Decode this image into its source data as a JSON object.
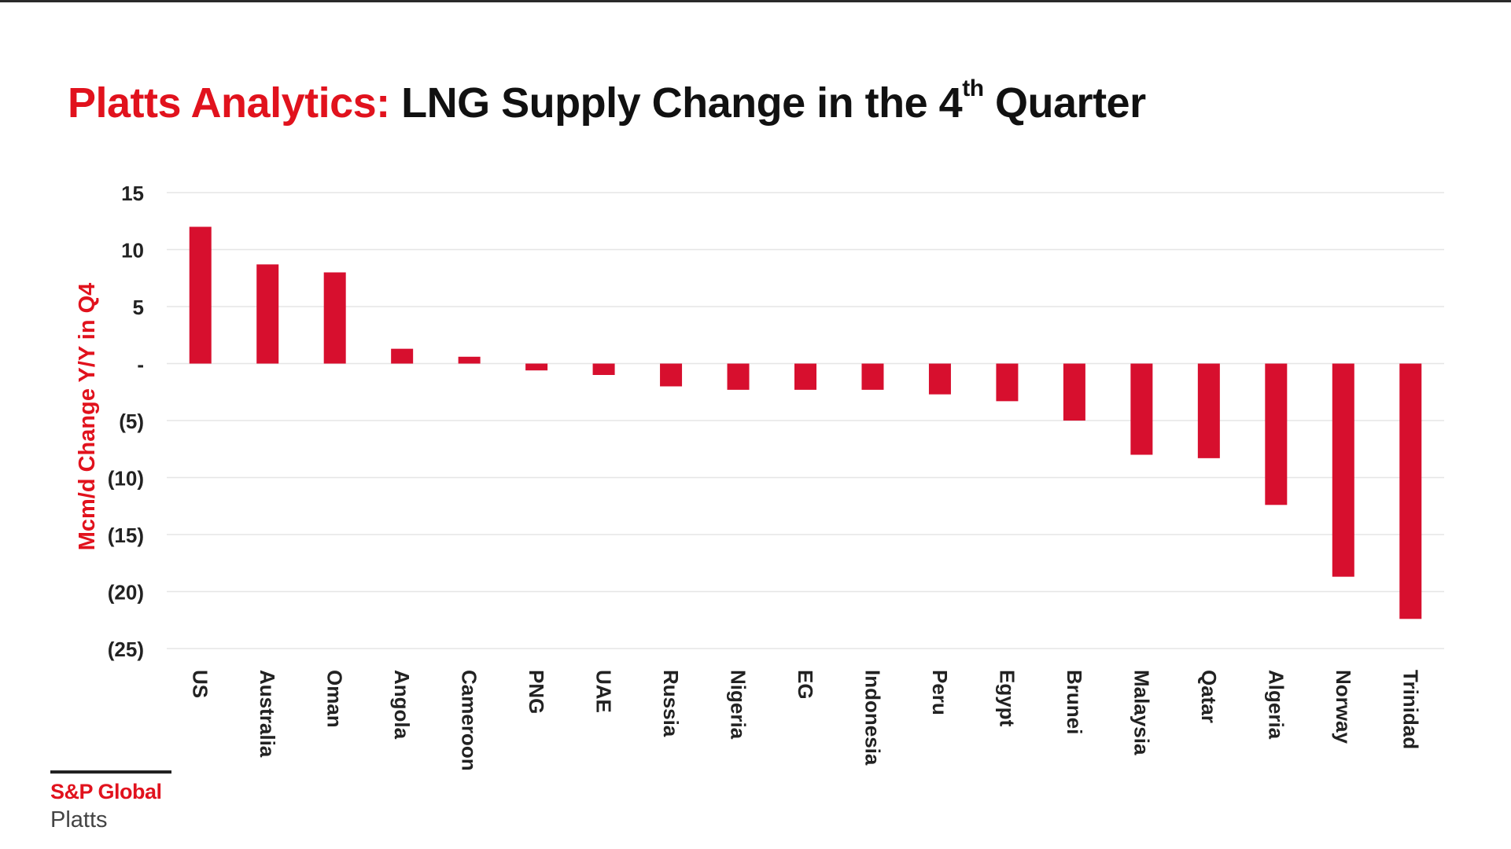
{
  "title": {
    "prefix": "Platts Analytics:",
    "main": "LNG Supply Change in the 4",
    "superscript": "th",
    "suffix": " Quarter"
  },
  "colors": {
    "accent": "#e1121d",
    "bar": "#d70f2e",
    "grid": "#e6e6e6"
  },
  "logo": {
    "brand": "S&P Global",
    "sub": "Platts"
  },
  "chart_data": {
    "type": "bar",
    "title": "Platts Analytics: LNG Supply Change in the 4th Quarter",
    "xlabel": "",
    "ylabel": "Mcm/d Change Y/Y in Q4",
    "ylim": [
      -25,
      15
    ],
    "yticks": [
      15,
      10,
      5,
      0,
      -5,
      -10,
      -15,
      -20,
      -25
    ],
    "ytick_labels": [
      "15",
      "10",
      "5",
      "-",
      "(5)",
      "(10)",
      "(15)",
      "(20)",
      "(25)"
    ],
    "grid": true,
    "categories": [
      "US",
      "Australia",
      "Oman",
      "Angola",
      "Cameroon",
      "PNG",
      "UAE",
      "Russia",
      "Nigeria",
      "EG",
      "Indonesia",
      "Peru",
      "Egypt",
      "Brunei",
      "Malaysia",
      "Qatar",
      "Algeria",
      "Norway",
      "Trinidad"
    ],
    "values": [
      12,
      8.7,
      8,
      1.3,
      0.6,
      -0.6,
      -1,
      -2,
      -2.3,
      -2.3,
      -2.3,
      -2.7,
      -3.3,
      -5,
      -8,
      -8.3,
      -12.4,
      -18.7,
      -22.4
    ]
  }
}
